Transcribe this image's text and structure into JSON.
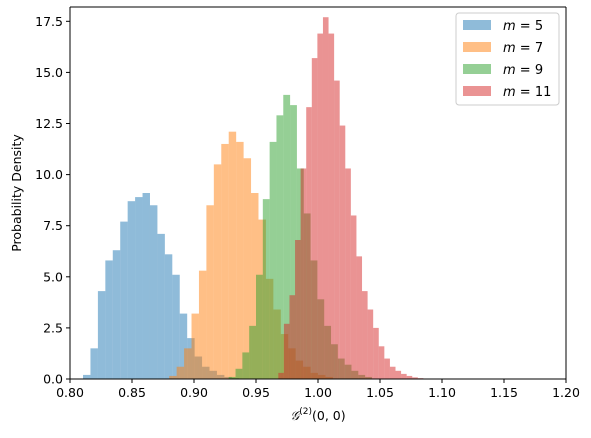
{
  "chart_data": {
    "type": "histogram",
    "xlabel": "𝒢(2)(0, 0)",
    "xlabel_main": "𝒢",
    "xlabel_sup": "(2)",
    "xlabel_args": "(0, 0)",
    "ylabel": "Probability Density",
    "xlim": [
      0.8,
      1.2
    ],
    "ylim": [
      0,
      18.2
    ],
    "x_ticks": [
      "0.80",
      "0.85",
      "0.90",
      "0.95",
      "1.00",
      "1.05",
      "1.10",
      "1.15",
      "1.20"
    ],
    "x_tick_values": [
      0.8,
      0.85,
      0.9,
      0.95,
      1.0,
      1.05,
      1.1,
      1.15,
      1.2
    ],
    "y_ticks": [
      "0.0",
      "2.5",
      "5.0",
      "7.5",
      "10.0",
      "12.5",
      "15.0",
      "17.5"
    ],
    "y_tick_values": [
      0.0,
      2.5,
      5.0,
      7.5,
      10.0,
      12.5,
      15.0,
      17.5
    ],
    "grid": false,
    "legend_position": "top-right",
    "alpha": 0.5,
    "series": [
      {
        "name": "m = 5",
        "label_var": "m",
        "label_val": "5",
        "color": "#1f77b4",
        "bin_start": 0.8105,
        "bin_width": 0.006,
        "values": [
          0.2,
          1.5,
          4.3,
          5.8,
          6.3,
          7.7,
          8.7,
          8.9,
          9.1,
          8.5,
          7.1,
          6.1,
          5.1,
          3.2,
          2.0,
          1.1,
          0.6,
          0.4,
          0.2,
          0.1,
          0.05
        ]
      },
      {
        "name": "m = 7",
        "label_var": "m",
        "label_val": "7",
        "color": "#ff7f0e",
        "bin_start": 0.88,
        "bin_width": 0.006,
        "values": [
          0.15,
          0.6,
          1.5,
          3.2,
          5.3,
          8.5,
          10.5,
          11.5,
          12.1,
          11.6,
          10.8,
          9.1,
          7.8,
          4.9,
          3.4,
          2.2,
          1.5,
          0.9,
          0.6,
          0.3,
          0.2,
          0.1
        ]
      },
      {
        "name": "m = 9",
        "label_var": "m",
        "label_val": "9",
        "color": "#2ca02c",
        "bin_start": 0.928,
        "bin_width": 0.0055,
        "values": [
          0.1,
          0.5,
          1.3,
          2.6,
          5.1,
          8.8,
          11.6,
          12.9,
          13.9,
          13.4,
          10.3,
          8.1,
          5.8,
          3.9,
          2.6,
          1.7,
          1.0,
          0.7,
          0.4,
          0.2,
          0.1
        ]
      },
      {
        "name": "m = 11",
        "label_var": "m",
        "label_val": "11",
        "color": "#d62728",
        "bin_start": 0.968,
        "bin_width": 0.0045,
        "values": [
          0.3,
          2.7,
          4.1,
          6.8,
          10.3,
          13.3,
          15.7,
          16.9,
          17.7,
          16.9,
          14.6,
          12.4,
          10.3,
          8.0,
          6.0,
          4.3,
          3.4,
          2.5,
          1.6,
          1.0,
          0.6,
          0.4,
          0.25,
          0.15,
          0.08,
          0.04
        ]
      }
    ]
  }
}
